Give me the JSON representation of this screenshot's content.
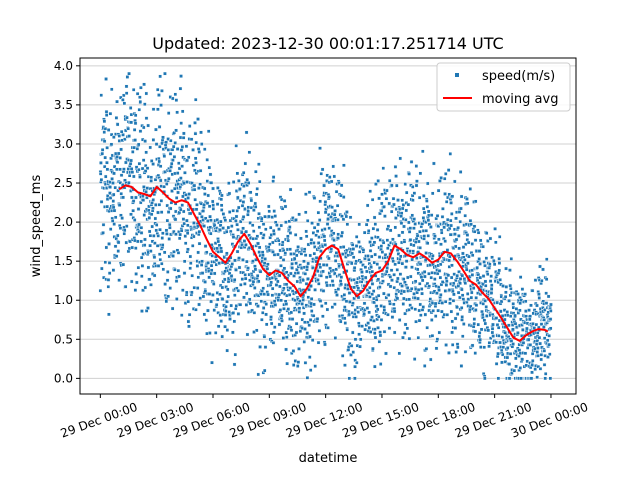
{
  "chart_data": {
    "type": "scatter",
    "title": "Updated: 2023-12-30 00:01:17.251714 UTC",
    "xlabel": "datetime",
    "ylabel": "wind_speed_ms",
    "xlim": [
      "2023-12-28 22:55",
      "2023-12-30 01:20"
    ],
    "ylim": [
      -0.2,
      4.1
    ],
    "x_ticks": [
      "29 Dec 00:00",
      "29 Dec 03:00",
      "29 Dec 06:00",
      "29 Dec 09:00",
      "29 Dec 12:00",
      "29 Dec 15:00",
      "29 Dec 18:00",
      "29 Dec 21:00",
      "30 Dec 00:00"
    ],
    "y_ticks": [
      "0.0",
      "0.5",
      "1.0",
      "1.5",
      "2.0",
      "2.5",
      "3.0",
      "3.5",
      "4.0"
    ],
    "grid": "horizontal",
    "legend_position": "top-right",
    "legend": [
      "speed(m/s)",
      "moving avg"
    ],
    "colors": {
      "scatter": "#1f77b4",
      "moving_avg": "#ff0000",
      "grid": "#d0d0d0"
    },
    "series": [
      {
        "name": "moving avg",
        "kind": "line",
        "x": [
          "2023-12-29 01:00",
          "2023-12-29 01:20",
          "2023-12-29 01:40",
          "2023-12-29 02:00",
          "2023-12-29 02:20",
          "2023-12-29 02:40",
          "2023-12-29 03:00",
          "2023-12-29 03:20",
          "2023-12-29 03:40",
          "2023-12-29 04:00",
          "2023-12-29 04:20",
          "2023-12-29 04:40",
          "2023-12-29 05:00",
          "2023-12-29 05:20",
          "2023-12-29 05:40",
          "2023-12-29 06:00",
          "2023-12-29 06:20",
          "2023-12-29 06:40",
          "2023-12-29 07:00",
          "2023-12-29 07:20",
          "2023-12-29 07:40",
          "2023-12-29 08:00",
          "2023-12-29 08:20",
          "2023-12-29 08:40",
          "2023-12-29 09:00",
          "2023-12-29 09:20",
          "2023-12-29 09:40",
          "2023-12-29 10:00",
          "2023-12-29 10:20",
          "2023-12-29 10:40",
          "2023-12-29 11:00",
          "2023-12-29 11:20",
          "2023-12-29 11:40",
          "2023-12-29 12:00",
          "2023-12-29 12:20",
          "2023-12-29 12:40",
          "2023-12-29 13:00",
          "2023-12-29 13:20",
          "2023-12-29 13:40",
          "2023-12-29 14:00",
          "2023-12-29 14:20",
          "2023-12-29 14:40",
          "2023-12-29 15:00",
          "2023-12-29 15:20",
          "2023-12-29 15:40",
          "2023-12-29 16:00",
          "2023-12-29 16:20",
          "2023-12-29 16:40",
          "2023-12-29 17:00",
          "2023-12-29 17:20",
          "2023-12-29 17:40",
          "2023-12-29 18:00",
          "2023-12-29 18:20",
          "2023-12-29 18:40",
          "2023-12-29 19:00",
          "2023-12-29 19:20",
          "2023-12-29 19:40",
          "2023-12-29 20:00",
          "2023-12-29 20:20",
          "2023-12-29 20:40",
          "2023-12-29 21:00",
          "2023-12-29 21:20",
          "2023-12-29 21:40",
          "2023-12-29 22:00",
          "2023-12-29 22:20",
          "2023-12-29 22:40",
          "2023-12-29 23:00",
          "2023-12-29 23:20",
          "2023-12-29 23:40",
          "2023-12-29 23:50"
        ],
        "y": [
          2.42,
          2.47,
          2.45,
          2.38,
          2.36,
          2.33,
          2.45,
          2.38,
          2.3,
          2.25,
          2.28,
          2.25,
          2.1,
          1.95,
          1.78,
          1.62,
          1.55,
          1.48,
          1.6,
          1.75,
          1.85,
          1.72,
          1.55,
          1.4,
          1.32,
          1.38,
          1.35,
          1.25,
          1.18,
          1.05,
          1.15,
          1.3,
          1.55,
          1.65,
          1.7,
          1.65,
          1.4,
          1.15,
          1.05,
          1.12,
          1.25,
          1.35,
          1.38,
          1.5,
          1.7,
          1.65,
          1.58,
          1.55,
          1.6,
          1.55,
          1.48,
          1.52,
          1.62,
          1.6,
          1.5,
          1.38,
          1.25,
          1.2,
          1.1,
          1.02,
          0.9,
          0.78,
          0.65,
          0.52,
          0.48,
          0.55,
          0.6,
          0.63,
          0.62,
          0.6
        ]
      },
      {
        "name": "speed(m/s)",
        "kind": "scatter",
        "points": 3000,
        "x_range": [
          "2023-12-29 00:00",
          "2023-12-30 00:00"
        ],
        "y_range": [
          0.0,
          3.9
        ]
      }
    ]
  }
}
